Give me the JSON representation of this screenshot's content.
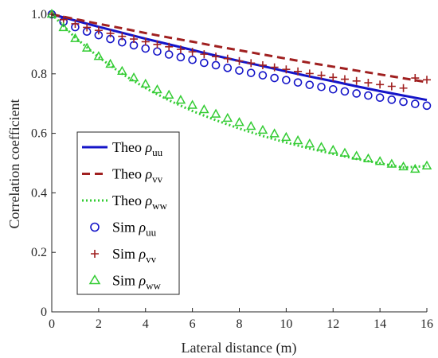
{
  "chart_data": {
    "type": "line",
    "xlabel": "Lateral distance (m)",
    "ylabel": "Correlation coefficient",
    "xlim": [
      0,
      16
    ],
    "ylim": [
      0,
      1.0
    ],
    "x_ticks": [
      0,
      2,
      4,
      6,
      8,
      10,
      12,
      14,
      16
    ],
    "y_ticks": [
      0,
      0.2,
      0.4,
      0.6,
      0.8,
      1.0
    ],
    "x_tick_labels": [
      "0",
      "2",
      "4",
      "6",
      "8",
      "10",
      "12",
      "14",
      "16"
    ],
    "y_tick_labels": [
      "0",
      "0.2",
      "0.4",
      "0.6",
      "0.8",
      "1.0"
    ],
    "grid": false,
    "legend_placement": "center-left",
    "legend": [
      {
        "prefix": "Theo",
        "sym": "ρ",
        "sub": "uu"
      },
      {
        "prefix": "Theo",
        "sym": "ρ",
        "sub": "vv"
      },
      {
        "prefix": "Theo",
        "sym": "ρ",
        "sub": "ww"
      },
      {
        "prefix": "Sim",
        "sym": "ρ",
        "sub": "uu"
      },
      {
        "prefix": "Sim",
        "sym": "ρ",
        "sub": "vv"
      },
      {
        "prefix": "Sim",
        "sym": "ρ",
        "sub": "ww"
      }
    ],
    "series": [
      {
        "style": "solid-line",
        "color": "#1414c8",
        "x": [
          0,
          1,
          2,
          3,
          4,
          5,
          6,
          7,
          8,
          9,
          10,
          11,
          12,
          13,
          14,
          15,
          16
        ],
        "y": [
          1.0,
          0.979,
          0.958,
          0.938,
          0.918,
          0.899,
          0.88,
          0.861,
          0.843,
          0.826,
          0.808,
          0.791,
          0.775,
          0.758,
          0.742,
          0.727,
          0.712
        ]
      },
      {
        "style": "dashed-line",
        "color": "#a02020",
        "x": [
          0,
          1,
          2,
          3,
          4,
          5,
          6,
          7,
          8,
          9,
          10,
          11,
          12,
          13,
          14,
          15,
          16
        ],
        "y": [
          1.0,
          0.984,
          0.968,
          0.953,
          0.937,
          0.922,
          0.908,
          0.893,
          0.879,
          0.865,
          0.851,
          0.837,
          0.824,
          0.811,
          0.798,
          0.785,
          0.772
        ]
      },
      {
        "style": "dotted-line",
        "color": "#33cc33",
        "x": [
          0,
          1,
          2,
          3,
          4,
          5,
          6,
          7,
          8,
          9,
          10,
          11,
          12,
          13,
          14,
          15,
          16
        ],
        "y": [
          1.0,
          0.922,
          0.856,
          0.8,
          0.752,
          0.711,
          0.675,
          0.644,
          0.616,
          0.591,
          0.569,
          0.549,
          0.531,
          0.514,
          0.499,
          0.485,
          0.49
        ]
      },
      {
        "style": "circle-markers",
        "color": "#1414c8",
        "x": [
          0,
          0.5,
          1,
          1.5,
          2,
          2.5,
          3,
          3.5,
          4,
          4.5,
          5,
          5.5,
          6,
          6.5,
          7,
          7.5,
          8,
          8.5,
          9,
          9.5,
          10,
          10.5,
          11,
          11.5,
          12,
          12.5,
          13,
          13.5,
          14,
          14.5,
          15,
          15.5,
          16
        ],
        "y": [
          1.0,
          0.975,
          0.957,
          0.942,
          0.93,
          0.917,
          0.906,
          0.896,
          0.885,
          0.875,
          0.865,
          0.856,
          0.847,
          0.837,
          0.829,
          0.82,
          0.811,
          0.803,
          0.795,
          0.786,
          0.779,
          0.771,
          0.763,
          0.756,
          0.748,
          0.741,
          0.734,
          0.727,
          0.72,
          0.713,
          0.706,
          0.699,
          0.693
        ]
      },
      {
        "style": "plus-markers",
        "color": "#a02020",
        "x": [
          0,
          0.5,
          1,
          1.5,
          2,
          2.5,
          3,
          3.5,
          4,
          4.5,
          5,
          5.5,
          6,
          6.5,
          7,
          7.5,
          8,
          8.5,
          9,
          9.5,
          10,
          10.5,
          11,
          11.5,
          12,
          12.5,
          13,
          13.5,
          14,
          14.5,
          15,
          15.5,
          16
        ],
        "y": [
          1.0,
          0.982,
          0.968,
          0.956,
          0.946,
          0.936,
          0.926,
          0.917,
          0.908,
          0.899,
          0.891,
          0.882,
          0.874,
          0.866,
          0.858,
          0.851,
          0.843,
          0.836,
          0.829,
          0.822,
          0.815,
          0.808,
          0.801,
          0.795,
          0.788,
          0.782,
          0.776,
          0.77,
          0.764,
          0.758,
          0.752,
          0.786,
          0.78
        ]
      },
      {
        "style": "triangle-markers",
        "color": "#33cc33",
        "x": [
          0,
          0.5,
          1,
          1.5,
          2,
          2.5,
          3,
          3.5,
          4,
          4.5,
          5,
          5.5,
          6,
          6.5,
          7,
          7.5,
          8,
          8.5,
          9,
          9.5,
          10,
          10.5,
          11,
          11.5,
          12,
          12.5,
          13,
          13.5,
          14,
          14.5,
          15,
          15.5,
          16
        ],
        "y": [
          1.0,
          0.955,
          0.918,
          0.886,
          0.858,
          0.832,
          0.808,
          0.786,
          0.765,
          0.746,
          0.728,
          0.711,
          0.694,
          0.679,
          0.664,
          0.65,
          0.636,
          0.623,
          0.61,
          0.598,
          0.586,
          0.575,
          0.564,
          0.553,
          0.543,
          0.533,
          0.523,
          0.514,
          0.505,
          0.496,
          0.487,
          0.479,
          0.49
        ]
      }
    ]
  }
}
